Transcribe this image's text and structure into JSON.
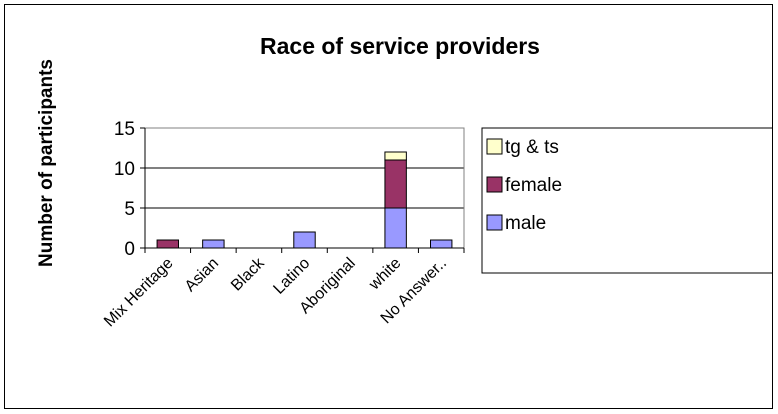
{
  "chart_data": {
    "type": "bar",
    "stacked": true,
    "title": "Race of service providers",
    "ylabel": "Number of participants",
    "xlabel": "",
    "ylim": [
      0,
      15
    ],
    "yticks": [
      0,
      5,
      10,
      15
    ],
    "grid": true,
    "legend_position": "right",
    "categories": [
      "Mix Heritage",
      "Asian",
      "Black",
      "Latino",
      "Aboriginal",
      "white",
      "No Answer.."
    ],
    "series": [
      {
        "name": "male",
        "color": "#9999ff",
        "values": [
          0,
          1,
          0,
          2,
          0,
          5,
          1
        ]
      },
      {
        "name": "female",
        "color": "#993366",
        "values": [
          1,
          0,
          0,
          0,
          0,
          6,
          0
        ]
      },
      {
        "name": "tg & ts",
        "color": "#ffffcc",
        "values": [
          0,
          0,
          0,
          0,
          0,
          1,
          0
        ]
      }
    ],
    "legend_order": [
      "tg & ts",
      "female",
      "male"
    ]
  }
}
